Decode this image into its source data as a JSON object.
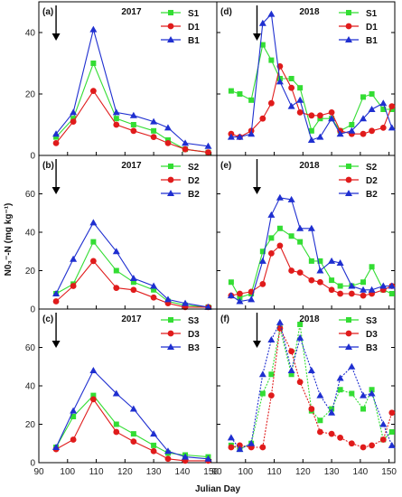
{
  "axes": {
    "xlabel": "Julian Day",
    "ylabel": "N0₃⁻-N (mg kg⁻¹)",
    "xticks": [
      90,
      100,
      110,
      120,
      130,
      140,
      150
    ],
    "yticks": [
      0,
      20,
      40,
      60
    ]
  },
  "colors": {
    "S": "#33dd33",
    "D": "#e01b1b",
    "B": "#1f2fd0"
  },
  "chart_data": [
    {
      "type": "line",
      "panel": "(a)",
      "title": "2017",
      "xlim": [
        90,
        152
      ],
      "ylim": [
        0,
        50
      ],
      "arrow_x": 96,
      "series": [
        {
          "name": "S1",
          "marker": "square",
          "x": [
            96,
            102,
            109,
            117,
            123,
            130,
            135,
            141,
            149
          ],
          "y": [
            6,
            12,
            30,
            12,
            10,
            8,
            5,
            2,
            1
          ]
        },
        {
          "name": "D1",
          "marker": "circle",
          "x": [
            96,
            102,
            109,
            117,
            123,
            130,
            135,
            141,
            149
          ],
          "y": [
            4,
            11,
            21,
            10,
            8,
            6,
            4,
            2,
            1
          ]
        },
        {
          "name": "B1",
          "marker": "triangle",
          "x": [
            96,
            102,
            109,
            117,
            123,
            130,
            135,
            141,
            149
          ],
          "y": [
            7,
            14,
            41,
            14,
            13,
            11,
            9,
            4,
            3
          ]
        }
      ]
    },
    {
      "type": "line",
      "panel": "(b)",
      "title": "2017",
      "xlim": [
        90,
        152
      ],
      "ylim": [
        0,
        80
      ],
      "arrow_x": 96,
      "series": [
        {
          "name": "S2",
          "marker": "square",
          "x": [
            96,
            102,
            109,
            117,
            123,
            130,
            135,
            141,
            149
          ],
          "y": [
            8,
            13,
            35,
            20,
            14,
            10,
            4,
            2,
            1
          ]
        },
        {
          "name": "D2",
          "marker": "circle",
          "x": [
            96,
            102,
            109,
            117,
            123,
            130,
            135,
            141,
            149
          ],
          "y": [
            4,
            12,
            25,
            11,
            10,
            6,
            3,
            1,
            1
          ]
        },
        {
          "name": "B2",
          "marker": "triangle",
          "x": [
            96,
            102,
            109,
            117,
            123,
            130,
            135,
            141,
            149
          ],
          "y": [
            8,
            26,
            45,
            30,
            16,
            12,
            5,
            3,
            1
          ]
        }
      ]
    },
    {
      "type": "line",
      "panel": "(c)",
      "title": "2017",
      "xlim": [
        90,
        152
      ],
      "ylim": [
        0,
        80
      ],
      "arrow_x": 96,
      "series": [
        {
          "name": "S3",
          "marker": "square",
          "x": [
            96,
            102,
            109,
            117,
            123,
            130,
            135,
            141,
            149
          ],
          "y": [
            8,
            24,
            35,
            20,
            15,
            9,
            5,
            4,
            3
          ]
        },
        {
          "name": "D3",
          "marker": "circle",
          "x": [
            96,
            102,
            109,
            117,
            123,
            130,
            135,
            141,
            149
          ],
          "y": [
            7,
            12,
            33,
            16,
            11,
            6,
            2,
            1,
            1
          ]
        },
        {
          "name": "B3",
          "marker": "triangle",
          "x": [
            96,
            102,
            109,
            117,
            123,
            130,
            135,
            141,
            149
          ],
          "y": [
            8,
            27,
            48,
            36,
            28,
            15,
            6,
            3,
            2
          ]
        }
      ]
    },
    {
      "type": "line",
      "panel": "(d)",
      "title": "2018",
      "xlim": [
        90,
        152
      ],
      "ylim": [
        0,
        50
      ],
      "arrow_x": 104,
      "series": [
        {
          "name": "S1",
          "marker": "square",
          "x": [
            95,
            98,
            102,
            106,
            109,
            112,
            116,
            119,
            123,
            126,
            130,
            133,
            137,
            141,
            144,
            148,
            151
          ],
          "y": [
            21,
            20,
            18,
            36,
            31,
            25,
            25,
            22,
            8,
            12,
            12,
            8,
            10,
            19,
            20,
            15,
            15
          ]
        },
        {
          "name": "D1",
          "marker": "circle",
          "x": [
            95,
            98,
            102,
            106,
            109,
            112,
            116,
            119,
            123,
            126,
            130,
            133,
            137,
            141,
            144,
            148,
            151
          ],
          "y": [
            7,
            6,
            8,
            12,
            17,
            29,
            22,
            14,
            13,
            13,
            14,
            8,
            7,
            7,
            8,
            9,
            16
          ]
        },
        {
          "name": "B1",
          "marker": "triangle",
          "x": [
            95,
            98,
            102,
            106,
            109,
            112,
            116,
            119,
            123,
            126,
            130,
            133,
            137,
            141,
            144,
            148,
            151
          ],
          "y": [
            6,
            6,
            7,
            43,
            46,
            24,
            16,
            18,
            5,
            6,
            12,
            7,
            8,
            12,
            15,
            17,
            9
          ]
        }
      ]
    },
    {
      "type": "line",
      "panel": "(e)",
      "title": "2018",
      "xlim": [
        90,
        152
      ],
      "ylim": [
        0,
        80
      ],
      "arrow_x": 104,
      "series": [
        {
          "name": "S2",
          "marker": "square",
          "x": [
            95,
            98,
            102,
            106,
            109,
            112,
            116,
            119,
            123,
            126,
            130,
            133,
            137,
            141,
            144,
            148,
            151
          ],
          "y": [
            14,
            6,
            8,
            30,
            37,
            42,
            38,
            35,
            25,
            25,
            15,
            12,
            12,
            14,
            22,
            10,
            8
          ]
        },
        {
          "name": "D2",
          "marker": "circle",
          "x": [
            95,
            98,
            102,
            106,
            109,
            112,
            116,
            119,
            123,
            126,
            130,
            133,
            137,
            141,
            144,
            148,
            151
          ],
          "y": [
            7,
            8,
            9,
            13,
            29,
            33,
            20,
            19,
            15,
            14,
            10,
            8,
            8,
            7,
            8,
            10,
            12
          ]
        },
        {
          "name": "B2",
          "marker": "triangle",
          "x": [
            95,
            98,
            102,
            106,
            109,
            112,
            116,
            119,
            123,
            126,
            130,
            133,
            137,
            141,
            144,
            148,
            151
          ],
          "y": [
            7,
            4,
            5,
            25,
            49,
            58,
            57,
            42,
            42,
            20,
            25,
            24,
            12,
            10,
            10,
            12,
            12
          ]
        }
      ]
    },
    {
      "type": "line",
      "panel": "(f)",
      "title": "2018",
      "xlim": [
        90,
        152
      ],
      "ylim": [
        0,
        80
      ],
      "arrow_x": 104,
      "series": [
        {
          "name": "S3",
          "marker": "square",
          "x": [
            95,
            98,
            102,
            106,
            109,
            112,
            116,
            119,
            123,
            126,
            130,
            133,
            137,
            141,
            144,
            148,
            151
          ],
          "y": [
            9,
            7,
            10,
            36,
            46,
            70,
            46,
            72,
            27,
            22,
            28,
            38,
            36,
            28,
            38,
            12,
            16
          ]
        },
        {
          "name": "D3",
          "marker": "circle",
          "x": [
            95,
            98,
            102,
            106,
            109,
            112,
            116,
            119,
            123,
            126,
            130,
            133,
            137,
            141,
            144,
            148,
            151
          ],
          "y": [
            8,
            9,
            8,
            8,
            35,
            70,
            58,
            42,
            28,
            16,
            15,
            13,
            10,
            8,
            9,
            12,
            26
          ]
        },
        {
          "name": "B3",
          "marker": "triangle",
          "x": [
            95,
            98,
            102,
            106,
            109,
            112,
            116,
            119,
            123,
            126,
            130,
            133,
            137,
            141,
            144,
            148,
            151
          ],
          "y": [
            13,
            7,
            10,
            46,
            64,
            73,
            48,
            65,
            48,
            35,
            26,
            44,
            50,
            35,
            36,
            20,
            9
          ]
        }
      ]
    }
  ]
}
